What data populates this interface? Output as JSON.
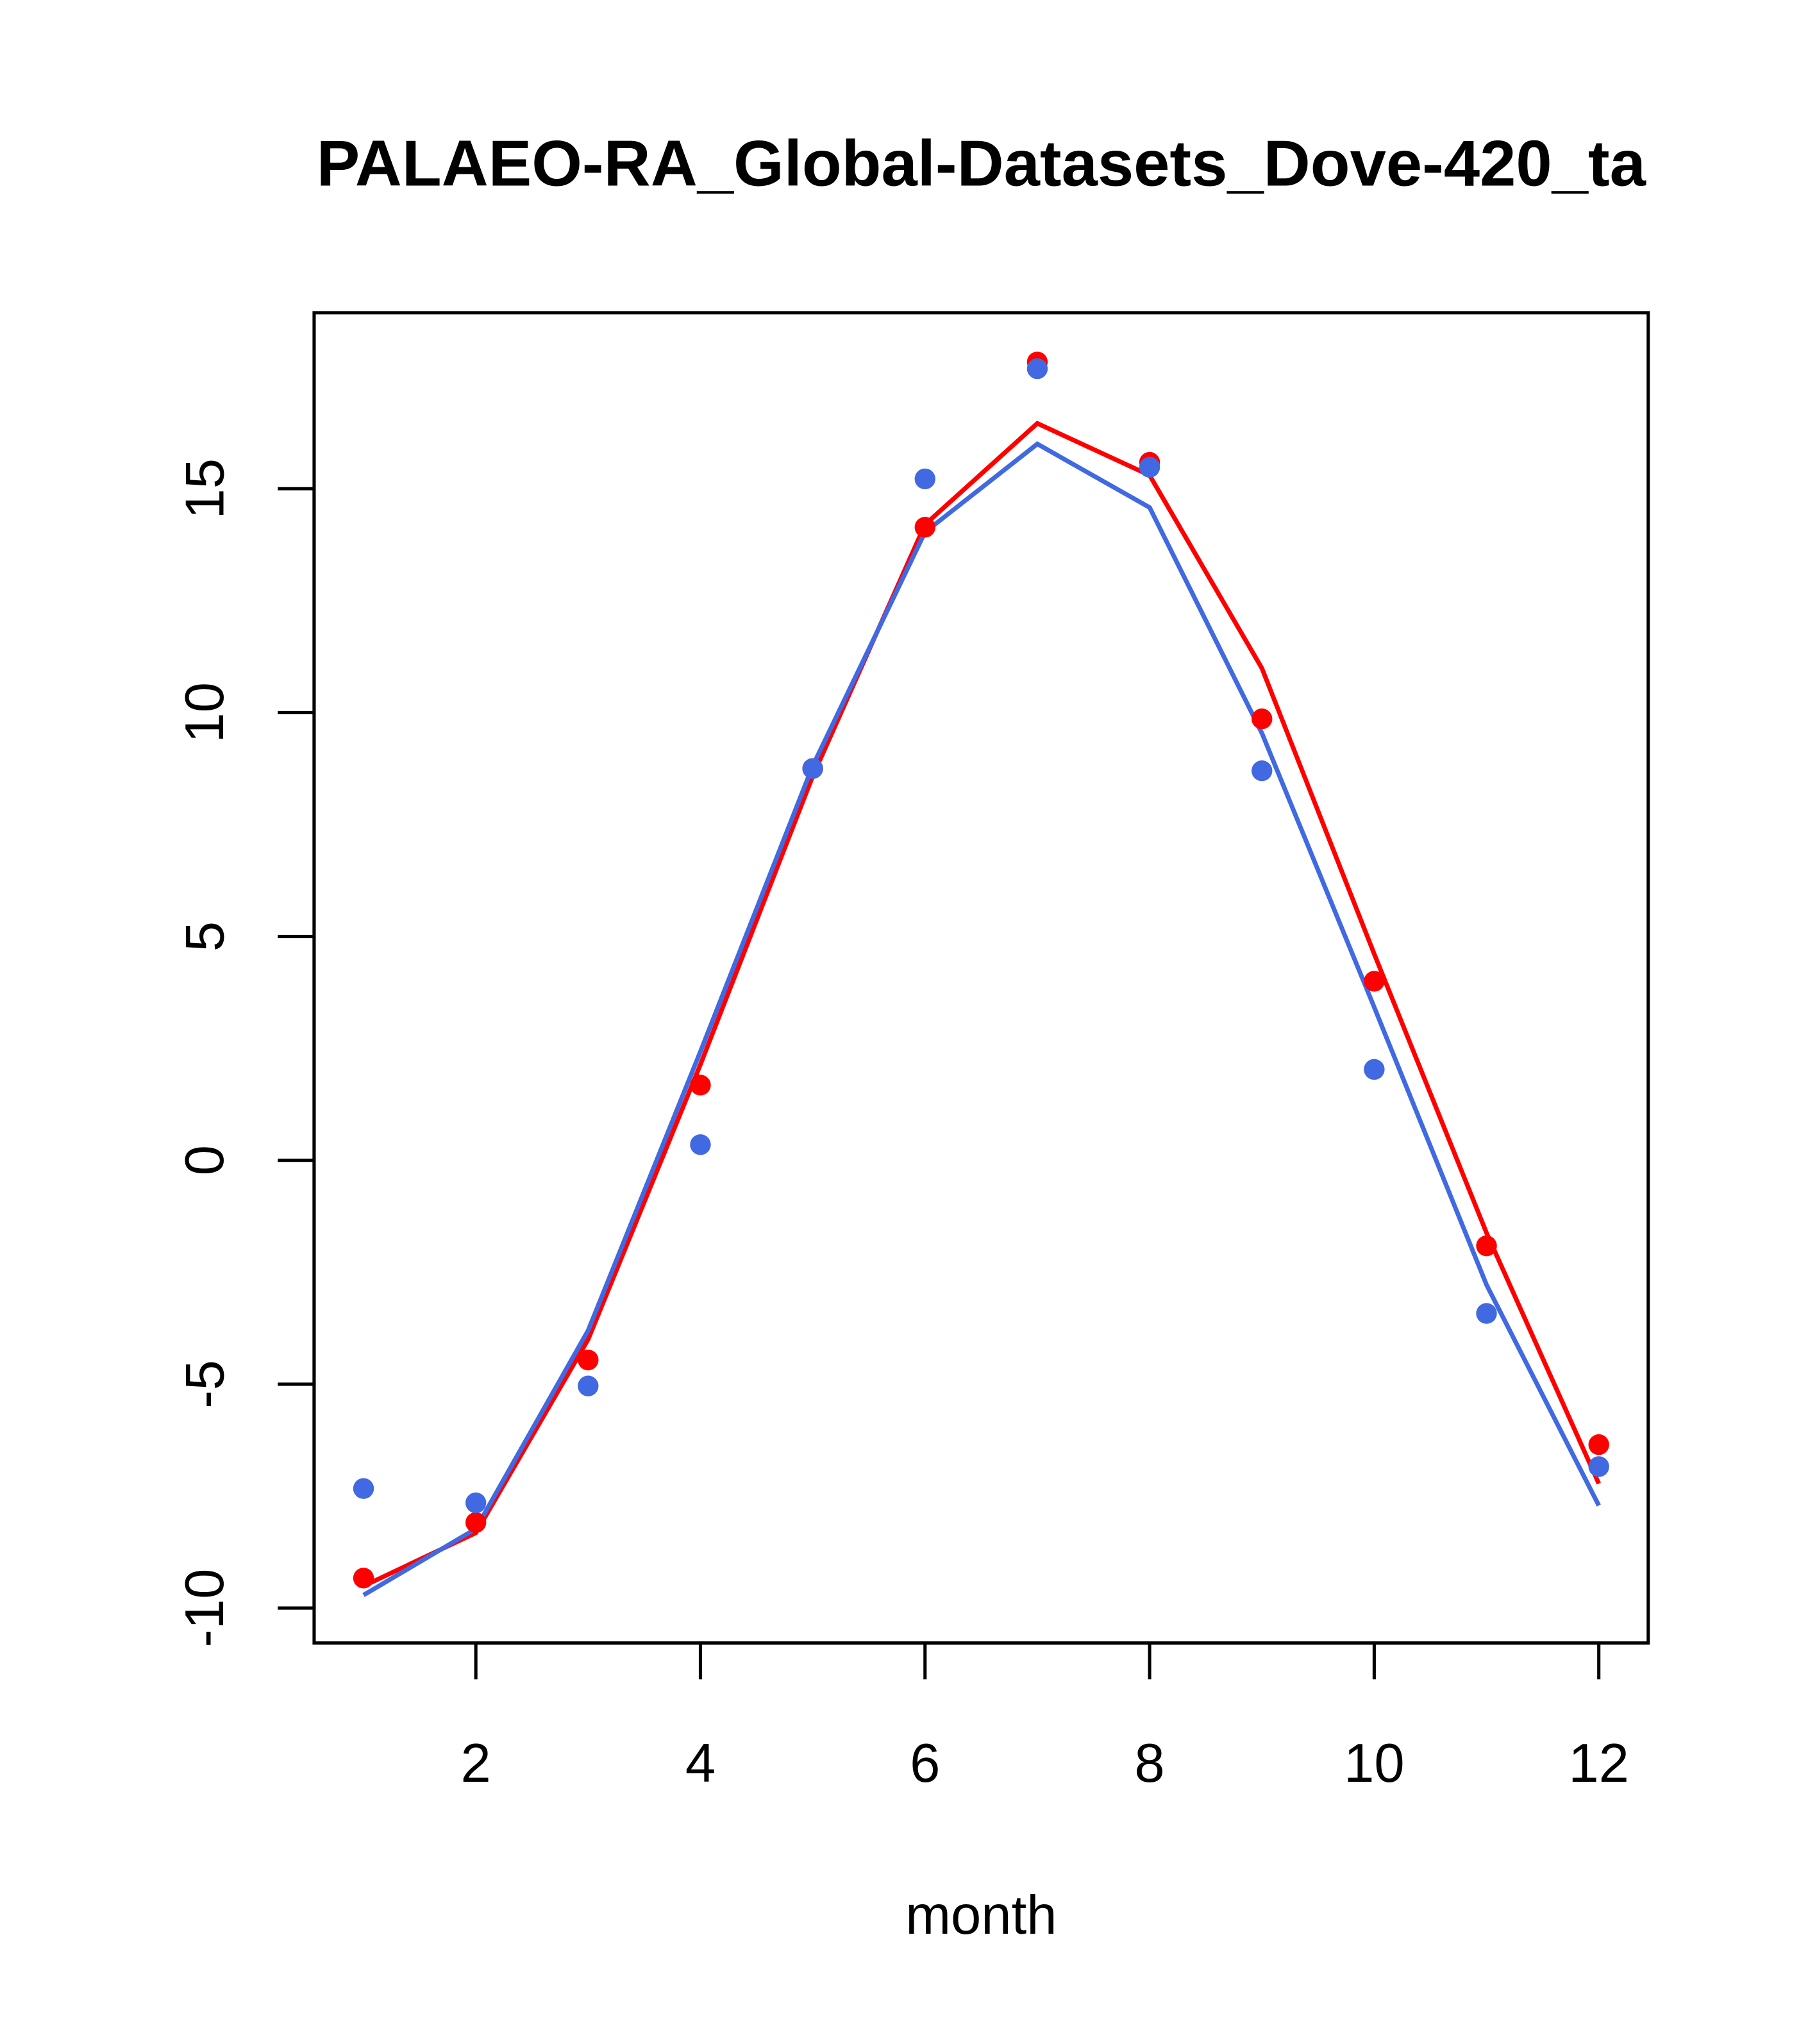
{
  "chart_data": {
    "type": "line",
    "title": "PALAEO-RA_Global-Datasets_Dove-420_ta",
    "xlabel": "month",
    "ylabel": "",
    "xlim": [
      0.56,
      12.44
    ],
    "ylim": [
      -10.78,
      18.93
    ],
    "xticks": [
      2,
      4,
      6,
      8,
      10,
      12
    ],
    "xtick_labels": [
      "2",
      "4",
      "6",
      "8",
      "10",
      "12"
    ],
    "yticks": [
      -10,
      -5,
      0,
      5,
      10,
      15
    ],
    "ytick_labels": [
      "-10",
      "-5",
      "0",
      "5",
      "10",
      "15"
    ],
    "grid": false,
    "x": [
      1,
      2,
      3,
      4,
      5,
      6,
      7,
      8,
      9,
      10,
      11,
      12
    ],
    "series": [
      {
        "name": "red-points",
        "kind": "points",
        "color": "#ff0000",
        "values": [
          -9.33,
          -8.09,
          -4.46,
          1.68,
          8.75,
          14.14,
          17.83,
          15.59,
          9.86,
          4.0,
          -1.91,
          -6.35
        ]
      },
      {
        "name": "blue-points",
        "kind": "points",
        "color": "#4169e1",
        "values": [
          -7.33,
          -7.65,
          -5.04,
          0.35,
          8.75,
          15.22,
          17.68,
          15.48,
          8.7,
          2.03,
          -3.42,
          -6.84
        ]
      },
      {
        "name": "red-line",
        "kind": "line",
        "color": "#ff0000",
        "values": [
          -9.51,
          -8.32,
          -4.0,
          2.14,
          8.58,
          14.2,
          16.46,
          15.3,
          10.99,
          4.61,
          -1.62,
          -7.22
        ]
      },
      {
        "name": "blue-line",
        "kind": "line",
        "color": "#4169e1",
        "values": [
          -9.71,
          -8.23,
          -3.8,
          2.43,
          8.81,
          14.03,
          16.0,
          14.58,
          9.54,
          3.42,
          -2.78,
          -7.71
        ]
      }
    ]
  }
}
